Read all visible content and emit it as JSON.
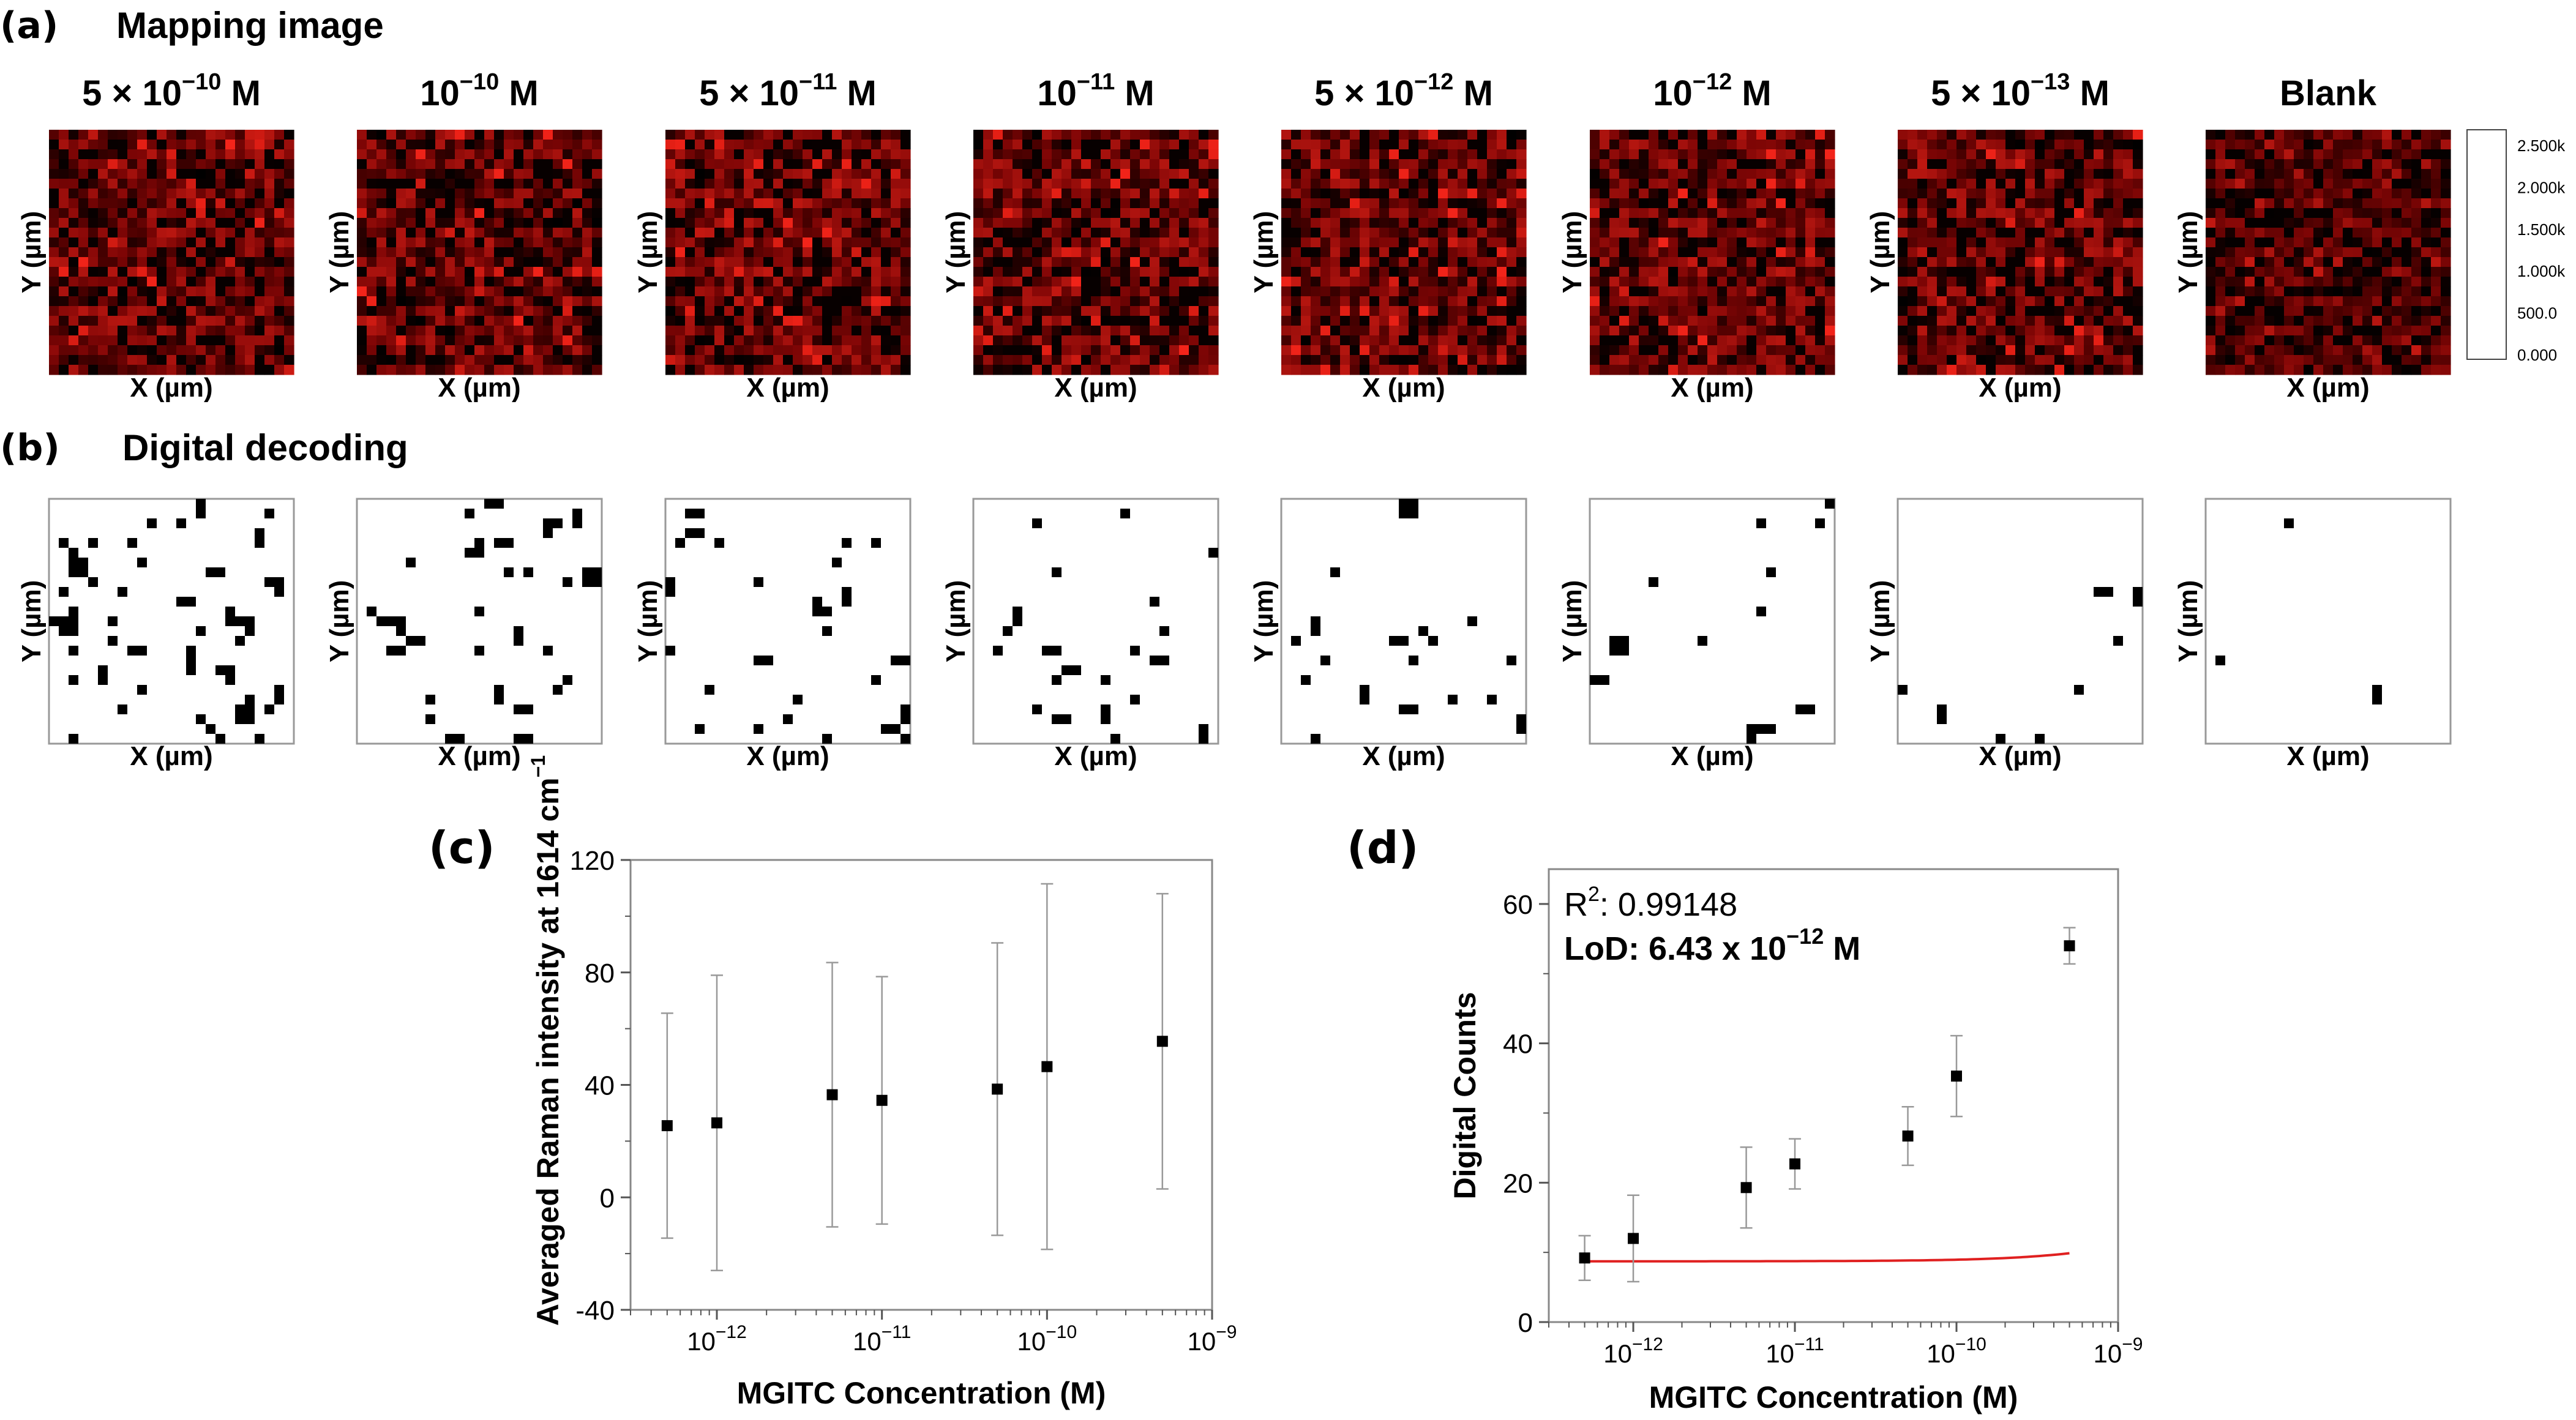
{
  "panel_a": {
    "label": "(a)",
    "title": "Mapping image",
    "maps": [
      {
        "title_base": "5 × 10",
        "title_exp": "−10",
        "title_unit": " M",
        "xlabel": "X (µm)",
        "ylabel": "Y (µm)"
      },
      {
        "title_base": "10",
        "title_exp": "−10",
        "title_unit": " M",
        "xlabel": "X (µm)",
        "ylabel": "Y (µm)"
      },
      {
        "title_base": "5 × 10",
        "title_exp": "−11",
        "title_unit": " M",
        "xlabel": "X (µm)",
        "ylabel": "Y (µm)"
      },
      {
        "title_base": "10",
        "title_exp": "−11",
        "title_unit": " M",
        "xlabel": "X (µm)",
        "ylabel": "Y (µm)"
      },
      {
        "title_base": "5 × 10",
        "title_exp": "−12",
        "title_unit": " M",
        "xlabel": "X (µm)",
        "ylabel": "Y (µm)"
      },
      {
        "title_base": "10",
        "title_exp": "−12",
        "title_unit": " M",
        "xlabel": "X (µm)",
        "ylabel": "Y (µm)"
      },
      {
        "title_base": "5 × 10",
        "title_exp": "−13",
        "title_unit": " M",
        "xlabel": "X (µm)",
        "ylabel": "Y (µm)"
      },
      {
        "title_base": "Blank",
        "title_exp": "",
        "title_unit": "",
        "xlabel": "X (µm)",
        "ylabel": "Y (µm)"
      }
    ],
    "colorbar": {
      "ticks": [
        "2.500k",
        "2.000k",
        "1.500k",
        "1.000k",
        "500.0",
        "0.000"
      ],
      "colors": [
        "#ffffff",
        "#ffff40",
        "#ffcc00",
        "#ff7a00",
        "#ff1a00",
        "#b30000",
        "#600000",
        "#000000"
      ]
    }
  },
  "panel_b": {
    "label": "(b)",
    "title": "Digital decoding",
    "maps": [
      {
        "xlabel": "X (µm)",
        "ylabel": "Y (µm)",
        "count": 54
      },
      {
        "xlabel": "X (µm)",
        "ylabel": "Y (µm)",
        "count": 35
      },
      {
        "xlabel": "X (µm)",
        "ylabel": "Y (µm)",
        "count": 27
      },
      {
        "xlabel": "X (µm)",
        "ylabel": "Y (µm)",
        "count": 23
      },
      {
        "xlabel": "X (µm)",
        "ylabel": "Y (µm)",
        "count": 19
      },
      {
        "xlabel": "X (µm)",
        "ylabel": "Y (µm)",
        "count": 12
      },
      {
        "xlabel": "X (µm)",
        "ylabel": "Y (µm)",
        "count": 9
      },
      {
        "xlabel": "X (µm)",
        "ylabel": "Y (µm)",
        "count": 3
      }
    ]
  },
  "chart_data": [
    {
      "id": "c",
      "type": "scatter",
      "panel_label": "(c)",
      "xlabel": "MGITC Concentration (M)",
      "ylabel": "Averaged Raman intensity at 1614 cm",
      "ylabel_sup": "−1",
      "xscale": "log",
      "xlim": [
        3e-13,
        1e-09
      ],
      "ylim": [
        -40,
        120
      ],
      "yticks": [
        -40,
        0,
        40,
        80,
        120
      ],
      "xticks": [
        {
          "value": 1e-12,
          "base": "10",
          "exp": "−12"
        },
        {
          "value": 1e-11,
          "base": "10",
          "exp": "−11"
        },
        {
          "value": 1e-10,
          "base": "10",
          "exp": "−10"
        },
        {
          "value": 1e-09,
          "base": "10",
          "exp": "−9"
        }
      ],
      "series": [
        {
          "name": "Averaged Raman intensity",
          "x": [
            5e-13,
            1e-12,
            5e-12,
            1e-11,
            5e-11,
            1e-10,
            5e-10
          ],
          "y": [
            25.5,
            26.5,
            36.5,
            34.5,
            38.5,
            46.5,
            55.5
          ],
          "err": [
            40,
            52.5,
            47,
            44,
            52,
            65,
            52.5
          ]
        }
      ]
    },
    {
      "id": "d",
      "type": "scatter",
      "panel_label": "(d)",
      "xlabel": "MGITC Concentration (M)",
      "ylabel": "Digital Counts",
      "xscale": "log",
      "xlim": [
        3e-13,
        1e-09
      ],
      "ylim": [
        0,
        65
      ],
      "yticks": [
        0,
        20,
        40,
        60
      ],
      "xticks": [
        {
          "value": 1e-12,
          "base": "10",
          "exp": "−12"
        },
        {
          "value": 1e-11,
          "base": "10",
          "exp": "−11"
        },
        {
          "value": 1e-10,
          "base": "10",
          "exp": "−10"
        },
        {
          "value": 1e-09,
          "base": "10",
          "exp": "−9"
        }
      ],
      "series": [
        {
          "name": "Digital counts",
          "x": [
            5e-13,
            1e-12,
            5e-12,
            1e-11,
            5e-11,
            1e-10,
            5e-10
          ],
          "y": [
            9.2,
            12,
            19.3,
            22.7,
            26.7,
            35.3,
            54
          ],
          "err": [
            3.2,
            6.2,
            5.8,
            3.6,
            4.2,
            5.8,
            2.6
          ]
        }
      ],
      "fit": {
        "color": "#e02020",
        "a": 8.72,
        "b": 0.00233,
        "r2_prefix": "R",
        "r2_sup": "2",
        "r2_value": ": 0.99148",
        "lod_base": "LoD: 6.43 x 10",
        "lod_exp": "−12",
        "lod_unit": " M"
      }
    }
  ]
}
